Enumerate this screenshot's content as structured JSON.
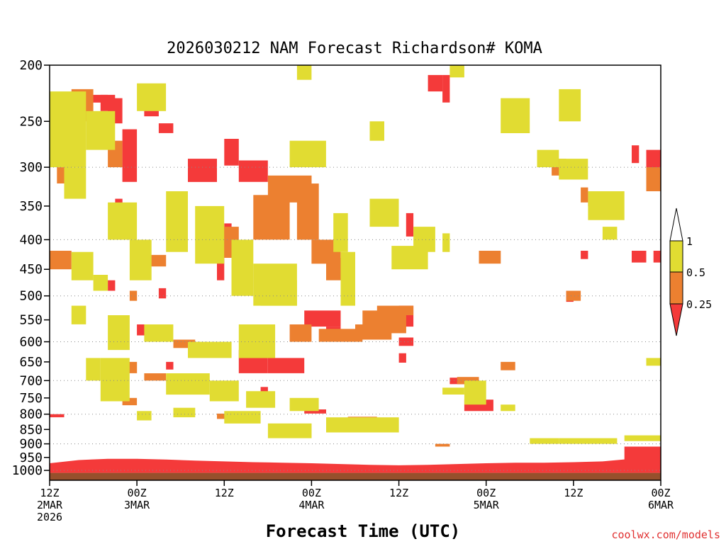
{
  "chart_data": {
    "type": "heatmap",
    "title": "2026030212 NAM Forecast Richardson# KOMA",
    "xlabel": "Forecast Time (UTC)",
    "ylabel": "",
    "credit": "coolwx.com/models",
    "x_unit": "hours since 2026-03-02 12Z",
    "xlim": [
      0,
      84
    ],
    "y_unit": "hPa",
    "ylim": [
      200,
      1040
    ],
    "y_scale": "log",
    "yticks": [
      200,
      250,
      300,
      350,
      400,
      450,
      500,
      550,
      600,
      650,
      700,
      750,
      800,
      850,
      900,
      950,
      1000
    ],
    "xticks": [
      {
        "hour": 0,
        "labels": [
          "12Z",
          "2MAR",
          "2026"
        ]
      },
      {
        "hour": 12,
        "labels": [
          "00Z",
          "3MAR"
        ]
      },
      {
        "hour": 24,
        "labels": [
          "12Z"
        ]
      },
      {
        "hour": 36,
        "labels": [
          "00Z",
          "4MAR"
        ]
      },
      {
        "hour": 48,
        "labels": [
          "12Z"
        ]
      },
      {
        "hour": 60,
        "labels": [
          "00Z",
          "5MAR"
        ]
      },
      {
        "hour": 72,
        "labels": [
          "12Z"
        ]
      },
      {
        "hour": 84,
        "labels": [
          "00Z",
          "6MAR"
        ]
      }
    ],
    "gridlines_at": [
      300,
      400,
      500,
      600,
      700,
      800,
      900,
      1000
    ],
    "legend": {
      "placement": "right",
      "levels": [
        {
          "label": "1",
          "range": ">1",
          "color": "#ffffff"
        },
        {
          "label": "0.5",
          "range": "0.5-1",
          "color": "#e1dc32"
        },
        {
          "label": "0.25",
          "range": "0.25-0.5",
          "color": "#ec8030"
        },
        {
          "label": "",
          "range": "<0.25",
          "color": "#f43a3a"
        }
      ]
    },
    "colors": {
      "below_ground": "#96502c",
      "low": "#f43a3a",
      "mid": "#ec8030",
      "high": "#e1dc32"
    },
    "cell_width_hours": 1,
    "series": [
      {
        "name": "Ri < 0.25",
        "color": "#f43a3a",
        "patches": [
          [
            4,
            8,
            225,
            232
          ],
          [
            8,
            10,
            228,
            252
          ],
          [
            10,
            12,
            258,
            318
          ],
          [
            13,
            15,
            228,
            245
          ],
          [
            15,
            17,
            252,
            262
          ],
          [
            19,
            23,
            290,
            318
          ],
          [
            24,
            26,
            268,
            298
          ],
          [
            26,
            30,
            292,
            318
          ],
          [
            24,
            25,
            375,
            395
          ],
          [
            23,
            24,
            430,
            470
          ],
          [
            15,
            16,
            485,
            505
          ],
          [
            9,
            10,
            340,
            360
          ],
          [
            35,
            40,
            530,
            565
          ],
          [
            38,
            40,
            565,
            595
          ],
          [
            26,
            30,
            620,
            680
          ],
          [
            30,
            35,
            640,
            680
          ],
          [
            48,
            50,
            520,
            565
          ],
          [
            52,
            54,
            208,
            222
          ],
          [
            54,
            55,
            208,
            232
          ],
          [
            46,
            47,
            345,
            365
          ],
          [
            49,
            50,
            360,
            395
          ],
          [
            48,
            49,
            628,
            652
          ],
          [
            7,
            9,
            225,
            240
          ],
          [
            12,
            15,
            560,
            585
          ],
          [
            29,
            30,
            718,
            738
          ],
          [
            35,
            38,
            785,
            798
          ],
          [
            48,
            50,
            590,
            610
          ],
          [
            55,
            59,
            692,
            710
          ],
          [
            57,
            61,
            755,
            790
          ],
          [
            74,
            77,
            330,
            350
          ],
          [
            71,
            72,
            490,
            512
          ],
          [
            82,
            84,
            280,
            310
          ],
          [
            80,
            81,
            275,
            295
          ],
          [
            80,
            82,
            418,
            438
          ],
          [
            83,
            84,
            418,
            438
          ],
          [
            73,
            74,
            418,
            432
          ],
          [
            0,
            2,
            800,
            810
          ],
          [
            79,
            84,
            910,
            960
          ],
          [
            8,
            9,
            470,
            490
          ],
          [
            16,
            17,
            650,
            670
          ]
        ]
      },
      {
        "name": "0.25 <= Ri < 0.5",
        "color": "#ec8030",
        "patches": [
          [
            0,
            3,
            418,
            450
          ],
          [
            3,
            6,
            220,
            250
          ],
          [
            8,
            10,
            270,
            300
          ],
          [
            13,
            16,
            425,
            445
          ],
          [
            11,
            12,
            490,
            510
          ],
          [
            9,
            12,
            650,
            680
          ],
          [
            13,
            16,
            680,
            700
          ],
          [
            22,
            26,
            380,
            430
          ],
          [
            28,
            33,
            335,
            400
          ],
          [
            30,
            36,
            310,
            345
          ],
          [
            34,
            37,
            320,
            400
          ],
          [
            36,
            40,
            400,
            440
          ],
          [
            43,
            49,
            530,
            580
          ],
          [
            42,
            47,
            560,
            595
          ],
          [
            17,
            20,
            595,
            615
          ],
          [
            37,
            43,
            570,
            600
          ],
          [
            45,
            50,
            520,
            540
          ],
          [
            71,
            73,
            490,
            510
          ],
          [
            69,
            71,
            290,
            310
          ],
          [
            59,
            62,
            418,
            440
          ],
          [
            62,
            64,
            650,
            672
          ],
          [
            56,
            59,
            690,
            710
          ],
          [
            10,
            12,
            750,
            772
          ],
          [
            23,
            25,
            798,
            815
          ],
          [
            41,
            45,
            808,
            818
          ],
          [
            53,
            55,
            900,
            910
          ],
          [
            73,
            74,
            325,
            345
          ],
          [
            1,
            3,
            300,
            320
          ],
          [
            82,
            84,
            300,
            330
          ],
          [
            38,
            41,
            430,
            470
          ],
          [
            33,
            36,
            560,
            600
          ],
          [
            19,
            21,
            700,
            718
          ]
        ]
      },
      {
        "name": "0.5 <= Ri < 1",
        "color": "#e1dc32",
        "patches": [
          [
            34,
            36,
            200,
            212
          ],
          [
            55,
            57,
            200,
            210
          ],
          [
            62,
            66,
            228,
            262
          ],
          [
            67,
            70,
            280,
            300
          ],
          [
            70,
            73,
            220,
            250
          ],
          [
            70,
            74,
            290,
            315
          ],
          [
            74,
            79,
            330,
            370
          ],
          [
            76,
            78,
            380,
            400
          ],
          [
            0,
            5,
            222,
            300
          ],
          [
            2,
            5,
            300,
            340
          ],
          [
            5,
            9,
            240,
            280
          ],
          [
            8,
            12,
            345,
            400
          ],
          [
            11,
            14,
            400,
            470
          ],
          [
            3,
            6,
            420,
            470
          ],
          [
            6,
            8,
            460,
            490
          ],
          [
            16,
            19,
            330,
            420
          ],
          [
            20,
            24,
            350,
            440
          ],
          [
            25,
            28,
            400,
            500
          ],
          [
            28,
            34,
            440,
            520
          ],
          [
            33,
            38,
            270,
            300
          ],
          [
            39,
            41,
            360,
            420
          ],
          [
            40,
            42,
            420,
            520
          ],
          [
            44,
            48,
            340,
            380
          ],
          [
            44,
            46,
            250,
            270
          ],
          [
            50,
            53,
            380,
            420
          ],
          [
            54,
            55,
            390,
            420
          ],
          [
            8,
            11,
            540,
            620
          ],
          [
            13,
            17,
            560,
            600
          ],
          [
            16,
            22,
            680,
            740
          ],
          [
            22,
            26,
            700,
            760
          ],
          [
            27,
            31,
            730,
            780
          ],
          [
            33,
            37,
            750,
            790
          ],
          [
            19,
            25,
            600,
            640
          ],
          [
            26,
            31,
            560,
            640
          ],
          [
            54,
            57,
            720,
            740
          ],
          [
            57,
            60,
            700,
            770
          ],
          [
            62,
            64,
            770,
            790
          ],
          [
            7,
            11,
            640,
            760
          ],
          [
            24,
            29,
            790,
            830
          ],
          [
            30,
            36,
            830,
            880
          ],
          [
            38,
            48,
            810,
            860
          ],
          [
            66,
            70,
            880,
            900
          ],
          [
            70,
            78,
            880,
            900
          ],
          [
            79,
            84,
            870,
            890
          ],
          [
            82,
            84,
            640,
            660
          ],
          [
            47,
            52,
            410,
            450
          ],
          [
            12,
            16,
            215,
            240
          ],
          [
            5,
            7,
            640,
            700
          ],
          [
            3,
            5,
            520,
            560
          ],
          [
            17,
            20,
            780,
            810
          ],
          [
            29,
            34,
            470,
            520
          ],
          [
            12,
            14,
            790,
            820
          ]
        ]
      },
      {
        "name": "Ri < 0.25 (surface layer)",
        "color": "#f43a3a",
        "surface_band": [
          [
            0,
            972,
            1010
          ],
          [
            4,
            960,
            1010
          ],
          [
            8,
            955,
            1010
          ],
          [
            12,
            955,
            1010
          ],
          [
            16,
            958,
            1010
          ],
          [
            20,
            962,
            1010
          ],
          [
            24,
            965,
            1010
          ],
          [
            28,
            968,
            1010
          ],
          [
            32,
            970,
            1010
          ],
          [
            36,
            972,
            1010
          ],
          [
            40,
            975,
            1010
          ],
          [
            44,
            978,
            1010
          ],
          [
            48,
            980,
            1010
          ],
          [
            52,
            978,
            1010
          ],
          [
            56,
            975,
            1010
          ],
          [
            60,
            972,
            1010
          ],
          [
            64,
            970,
            1010
          ],
          [
            68,
            970,
            1010
          ],
          [
            72,
            968,
            1010
          ],
          [
            76,
            965,
            1010
          ],
          [
            80,
            955,
            1010
          ],
          [
            84,
            945,
            1010
          ]
        ]
      }
    ],
    "below_ground_from_hpa": 1010
  }
}
